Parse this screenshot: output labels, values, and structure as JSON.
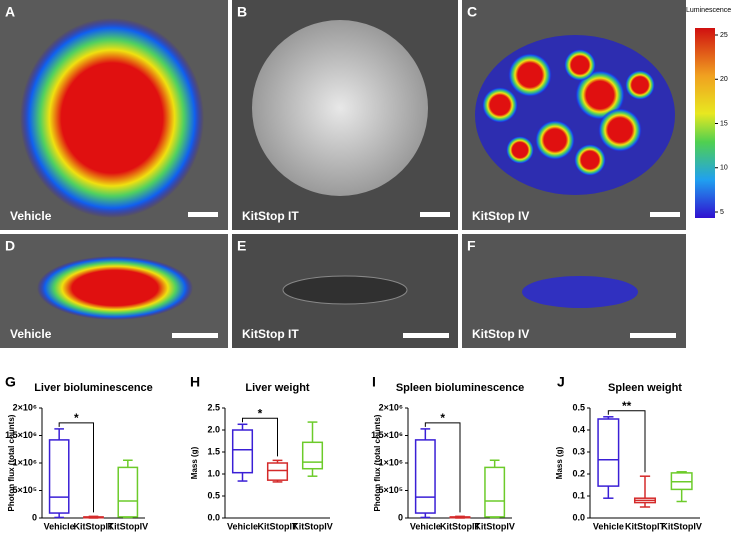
{
  "images": [
    {
      "label": "A",
      "caption": "Vehicle"
    },
    {
      "label": "B",
      "caption": "KitStop IT"
    },
    {
      "label": "C",
      "caption": "KitStop IV"
    },
    {
      "label": "D",
      "caption": "Vehicle"
    },
    {
      "label": "E",
      "caption": "KitStop IT"
    },
    {
      "label": "F",
      "caption": "KitStop IV"
    }
  ],
  "colorbar": {
    "title": "Luminescence",
    "ticks": [
      25,
      20,
      15,
      10,
      5
    ]
  },
  "chart_data": [
    {
      "type": "box",
      "panel": "G",
      "title": "Liver bioluminescence",
      "y_label": "Photon flux (total counts)",
      "categories": [
        "Vehicle",
        "KitStopIT",
        "KitStopIV"
      ],
      "colors": [
        "#3a1fd6",
        "#d42a2a",
        "#6ccb2a"
      ],
      "boxes": [
        {
          "min": 10000,
          "q1": 90000,
          "median": 380000,
          "q3": 1420000,
          "max": 1620000
        },
        {
          "min": 0,
          "q1": 5000,
          "median": 10000,
          "q3": 20000,
          "max": 30000
        },
        {
          "min": 10000,
          "q1": 20000,
          "median": 310000,
          "q3": 920000,
          "max": 1050000
        }
      ],
      "ylim": [
        0,
        2000000
      ],
      "yticks": [
        0,
        {
          "value": 500000,
          "label": "5×10⁵"
        },
        {
          "value": 1000000,
          "label": "1×10⁶"
        },
        {
          "value": 1500000,
          "label": "1.5×10⁶"
        },
        {
          "value": 2000000,
          "label": "2×10⁶"
        }
      ],
      "annotation": "*"
    },
    {
      "type": "box",
      "panel": "H",
      "title": "Liver weight",
      "y_label": "Mass (g)",
      "categories": [
        "Vehicle",
        "KitStopIT",
        "KitStopIV"
      ],
      "colors": [
        "#3a1fd6",
        "#d42a2a",
        "#6ccb2a"
      ],
      "boxes": [
        {
          "min": 0.84,
          "q1": 1.03,
          "median": 1.55,
          "q3": 2.0,
          "max": 2.13
        },
        {
          "min": 0.82,
          "q1": 0.86,
          "median": 1.08,
          "q3": 1.25,
          "max": 1.31
        },
        {
          "min": 0.95,
          "q1": 1.12,
          "median": 1.27,
          "q3": 1.72,
          "max": 2.18
        }
      ],
      "ylim": [
        0,
        2.5
      ],
      "yticks": [
        {
          "value": 0,
          "label": "0.0"
        },
        0.5,
        {
          "value": 1,
          "label": "1.0"
        },
        1.5,
        {
          "value": 2,
          "label": "2.0"
        },
        2.5
      ],
      "annotation": "*"
    },
    {
      "type": "box",
      "panel": "I",
      "title": "Spleen bioluminescence",
      "y_label": "Photon flux (total counts)",
      "categories": [
        "Vehicle",
        "KitStopIT",
        "KitStopIV"
      ],
      "colors": [
        "#3a1fd6",
        "#d42a2a",
        "#6ccb2a"
      ],
      "boxes": [
        {
          "min": 10000,
          "q1": 90000,
          "median": 380000,
          "q3": 1420000,
          "max": 1620000
        },
        {
          "min": 0,
          "q1": 5000,
          "median": 10000,
          "q3": 20000,
          "max": 30000
        },
        {
          "min": 10000,
          "q1": 20000,
          "median": 310000,
          "q3": 920000,
          "max": 1050000
        }
      ],
      "ylim": [
        0,
        2000000
      ],
      "yticks": [
        0,
        {
          "value": 500000,
          "label": "5×10⁵"
        },
        {
          "value": 1000000,
          "label": "1×10⁶"
        },
        {
          "value": 1500000,
          "label": "1.5×10⁶"
        },
        {
          "value": 2000000,
          "label": "2×10⁶"
        }
      ],
      "annotation": "*"
    },
    {
      "type": "box",
      "panel": "J",
      "title": "Spleen weight",
      "y_label": "Mass (g)",
      "categories": [
        "Vehicle",
        "KitStopIT",
        "KitStopIV"
      ],
      "colors": [
        "#3a1fd6",
        "#d42a2a",
        "#6ccb2a"
      ],
      "boxes": [
        {
          "min": 0.09,
          "q1": 0.145,
          "median": 0.265,
          "q3": 0.45,
          "max": 0.46
        },
        {
          "min": 0.05,
          "q1": 0.07,
          "median": 0.08,
          "q3": 0.09,
          "max": 0.19
        },
        {
          "min": 0.075,
          "q1": 0.13,
          "median": 0.165,
          "q3": 0.205,
          "max": 0.21
        }
      ],
      "ylim": [
        0,
        0.5
      ],
      "yticks": [
        {
          "value": 0,
          "label": "0.0"
        },
        0.1,
        0.2,
        0.3,
        0.4,
        0.5
      ],
      "annotation": "**"
    }
  ]
}
